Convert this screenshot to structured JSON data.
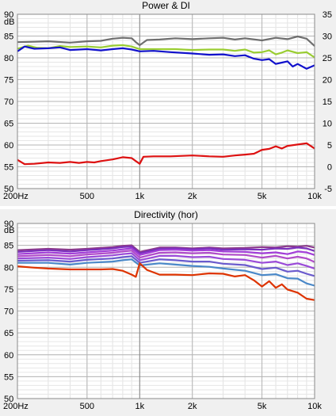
{
  "chart_data": [
    {
      "type": "line",
      "title": "Power & DI",
      "ylabel": "dB",
      "x_scale": "log",
      "xlim": [
        200,
        10000
      ],
      "ylim": [
        50,
        90
      ],
      "y2lim": [
        -5,
        35
      ],
      "x_ticks": [
        200,
        500,
        1000,
        2000,
        5000,
        10000
      ],
      "x_tick_labels": [
        "200Hz",
        "500",
        "1k",
        "2k",
        "5k",
        "10k"
      ],
      "y_ticks": [
        50,
        55,
        60,
        65,
        70,
        75,
        80,
        85,
        90
      ],
      "y_tick_labels": [
        "50",
        "55",
        "60",
        "65",
        "70",
        "75",
        "80",
        "85",
        "90"
      ],
      "y2_ticks": [
        -5,
        0,
        5,
        10,
        15,
        20,
        25,
        30,
        35
      ],
      "y2_tick_labels": [
        "-5",
        "0",
        "5",
        "10",
        "15",
        "20",
        "25",
        "30",
        "35"
      ],
      "grid": true,
      "series": [
        {
          "color": "#6e6e6e",
          "x": [
            200,
            250,
            300,
            400,
            500,
            600,
            700,
            800,
            900,
            950,
            1000,
            1100,
            1300,
            1600,
            2000,
            2500,
            3000,
            3500,
            4000,
            5000,
            6000,
            7000,
            8000,
            9000,
            10000
          ],
          "y": [
            83.6,
            83.7,
            83.8,
            83.5,
            83.8,
            83.9,
            84.4,
            84.6,
            84.5,
            83.6,
            82.9,
            84.1,
            84.2,
            84.5,
            84.3,
            84.5,
            84.6,
            84.2,
            84.5,
            84.0,
            84.6,
            84.3,
            84.9,
            84.4,
            82.7
          ]
        },
        {
          "color": "#9acd32",
          "x": [
            200,
            230,
            260,
            300,
            350,
            400,
            500,
            600,
            700,
            800,
            900,
            1000,
            1300,
            1600,
            2000,
            2500,
            3000,
            3500,
            4000,
            4500,
            5000,
            5500,
            6000,
            6500,
            7000,
            8000,
            9000,
            10000
          ],
          "y": [
            82.1,
            82.8,
            82.3,
            82.2,
            82.7,
            82.5,
            82.6,
            82.4,
            82.8,
            82.9,
            82.6,
            82.0,
            82.0,
            82.0,
            81.8,
            81.9,
            81.9,
            81.6,
            81.9,
            81.2,
            81.3,
            81.7,
            80.8,
            81.2,
            81.7,
            81.1,
            81.3,
            80.1
          ]
        },
        {
          "color": "#1111cc",
          "x": [
            200,
            220,
            250,
            300,
            350,
            400,
            500,
            600,
            700,
            800,
            900,
            1000,
            1200,
            1500,
            2000,
            2500,
            3000,
            3500,
            4000,
            4500,
            5000,
            5500,
            6000,
            6500,
            7000,
            7500,
            8000,
            9000,
            10000
          ],
          "y": [
            81.5,
            82.6,
            82.1,
            82.2,
            82.4,
            81.8,
            82.0,
            81.7,
            82.0,
            82.2,
            81.9,
            81.5,
            81.6,
            81.3,
            81.0,
            80.7,
            80.8,
            80.4,
            80.6,
            79.8,
            79.5,
            79.7,
            78.6,
            78.9,
            79.2,
            78.0,
            78.6,
            77.5,
            78.3
          ]
        },
        {
          "color": "#dd1111",
          "axis": "right",
          "x": [
            200,
            220,
            250,
            300,
            350,
            400,
            450,
            500,
            550,
            600,
            700,
            800,
            900,
            950,
            1000,
            1050,
            1200,
            1500,
            2000,
            2500,
            3000,
            3500,
            4000,
            4500,
            5000,
            5500,
            6000,
            6500,
            7000,
            8000,
            9000,
            10000
          ],
          "y": [
            1.6,
            0.6,
            0.7,
            1.0,
            0.9,
            1.1,
            0.9,
            1.1,
            1.0,
            1.3,
            1.7,
            2.2,
            2.0,
            1.3,
            0.7,
            2.3,
            2.4,
            2.4,
            2.6,
            2.4,
            2.3,
            2.6,
            2.8,
            3.0,
            3.9,
            4.1,
            4.7,
            4.2,
            4.8,
            5.1,
            5.4,
            4.2
          ]
        }
      ]
    },
    {
      "type": "line",
      "title": "Directivity (hor)",
      "ylabel": "dB",
      "x_scale": "log",
      "xlim": [
        200,
        10000
      ],
      "ylim": [
        50,
        90
      ],
      "x_ticks": [
        200,
        500,
        1000,
        2000,
        5000,
        10000
      ],
      "x_tick_labels": [
        "200Hz",
        "500",
        "1k",
        "2k",
        "5k",
        "10k"
      ],
      "y_ticks": [
        50,
        55,
        60,
        65,
        70,
        75,
        80,
        85,
        90
      ],
      "y_tick_labels": [
        "50",
        "55",
        "60",
        "65",
        "70",
        "75",
        "80",
        "85",
        "90"
      ],
      "grid": true,
      "series": [
        {
          "color": "#8b3a8b",
          "x": [
            200,
            300,
            400,
            500,
            700,
            800,
            900,
            1000,
            1300,
            1600,
            2000,
            2500,
            3000,
            4000,
            5000,
            6000,
            7000,
            8000,
            9000,
            10000
          ],
          "y": [
            83.9,
            84.2,
            84.0,
            84.2,
            84.6,
            84.9,
            85.0,
            83.5,
            84.5,
            84.5,
            84.3,
            84.5,
            84.3,
            84.4,
            84.6,
            84.5,
            84.8,
            84.7,
            84.9,
            84.5
          ]
        },
        {
          "color": "#7a2fbd",
          "x": [
            200,
            300,
            400,
            500,
            700,
            800,
            900,
            1000,
            1300,
            1600,
            2000,
            2500,
            3000,
            4000,
            5000,
            6000,
            7000,
            8000,
            9000,
            10000
          ],
          "y": [
            83.5,
            83.9,
            83.6,
            83.9,
            84.3,
            84.6,
            84.7,
            83.2,
            84.2,
            84.3,
            84.1,
            84.3,
            84.0,
            84.1,
            84.0,
            84.3,
            84.2,
            84.5,
            84.3,
            83.7
          ]
        },
        {
          "color": "#a23dd8",
          "x": [
            200,
            300,
            400,
            500,
            700,
            800,
            900,
            1000,
            1300,
            1600,
            2000,
            2500,
            3000,
            4000,
            5000,
            6000,
            7000,
            8000,
            9000,
            10000
          ],
          "y": [
            83.0,
            83.4,
            83.1,
            83.4,
            83.8,
            84.1,
            84.3,
            82.8,
            83.9,
            84.0,
            83.8,
            83.9,
            83.6,
            83.5,
            83.2,
            83.4,
            83.0,
            83.6,
            83.4,
            82.8
          ]
        },
        {
          "color": "#b04bc9",
          "x": [
            200,
            300,
            400,
            500,
            700,
            800,
            900,
            1000,
            1300,
            1600,
            2000,
            2500,
            3000,
            4000,
            5000,
            6000,
            7000,
            8000,
            9000,
            10000
          ],
          "y": [
            82.5,
            82.8,
            82.5,
            82.9,
            83.3,
            83.6,
            83.8,
            82.2,
            83.3,
            83.4,
            83.2,
            83.3,
            82.9,
            82.8,
            82.2,
            82.6,
            82.0,
            82.4,
            82.0,
            81.2
          ]
        },
        {
          "color": "#9a4ad8",
          "x": [
            200,
            300,
            400,
            500,
            700,
            800,
            900,
            1000,
            1300,
            1600,
            2000,
            2500,
            3000,
            4000,
            5000,
            6000,
            7000,
            8000,
            9000,
            10000
          ],
          "y": [
            82.0,
            82.2,
            81.9,
            82.3,
            82.7,
            83.0,
            83.2,
            81.6,
            82.6,
            82.6,
            82.3,
            82.4,
            81.9,
            81.7,
            81.0,
            81.3,
            80.5,
            80.9,
            80.3,
            79.7
          ]
        },
        {
          "color": "#6a5acd",
          "x": [
            200,
            300,
            400,
            500,
            700,
            800,
            900,
            1000,
            1300,
            1600,
            2000,
            2500,
            3000,
            4000,
            5000,
            6000,
            7000,
            8000,
            9000,
            10000
          ],
          "y": [
            81.5,
            81.6,
            81.3,
            81.7,
            82.0,
            82.3,
            82.5,
            81.0,
            81.8,
            81.6,
            81.3,
            81.3,
            80.8,
            80.5,
            79.6,
            79.9,
            79.0,
            79.2,
            78.5,
            78.0
          ]
        },
        {
          "color": "#4a88c8",
          "x": [
            200,
            300,
            400,
            500,
            700,
            800,
            900,
            1000,
            1300,
            1600,
            2000,
            2500,
            3000,
            4000,
            5000,
            6000,
            7000,
            8000,
            9000,
            10000
          ],
          "y": [
            81.0,
            81.0,
            80.6,
            81.0,
            81.3,
            81.6,
            81.8,
            80.4,
            80.9,
            80.6,
            80.3,
            80.1,
            79.7,
            79.2,
            78.2,
            78.4,
            77.5,
            77.4,
            76.3,
            75.8
          ]
        },
        {
          "color": "#dd3300",
          "x": [
            200,
            250,
            300,
            400,
            500,
            600,
            700,
            800,
            900,
            950,
            1000,
            1100,
            1300,
            1600,
            2000,
            2500,
            3000,
            3500,
            4000,
            4500,
            5000,
            5500,
            6000,
            6500,
            7000,
            8000,
            9000,
            10000
          ],
          "y": [
            80.2,
            79.9,
            79.7,
            79.5,
            79.5,
            79.5,
            79.6,
            79.2,
            78.3,
            77.8,
            80.9,
            79.4,
            78.3,
            78.3,
            78.2,
            78.6,
            78.5,
            77.9,
            78.2,
            77.0,
            75.6,
            76.8,
            75.3,
            76.1,
            74.9,
            74.2,
            72.8,
            72.5
          ]
        }
      ]
    }
  ]
}
